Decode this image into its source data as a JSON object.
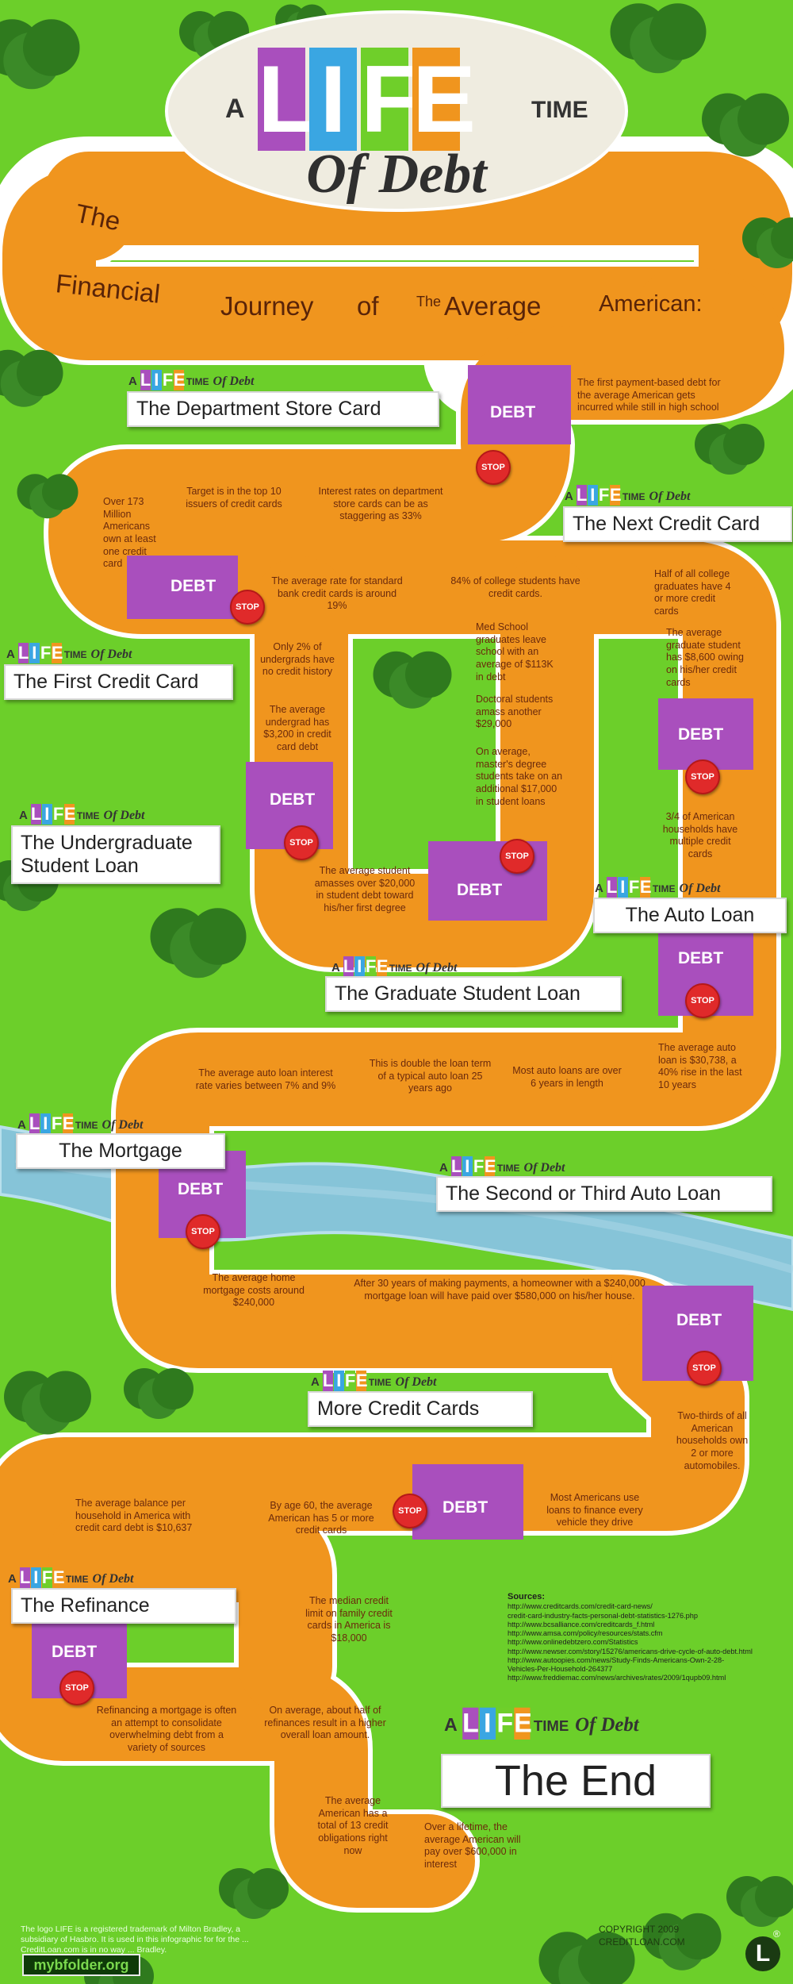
{
  "title": {
    "a": "A",
    "life_letters": [
      "L",
      "I",
      "F",
      "E"
    ],
    "life_colors": [
      "#a94fbd",
      "#3aa6e2",
      "#6fcf2a",
      "#f0951e"
    ],
    "time": "TIME",
    "subtitle": "Of Debt"
  },
  "mini_logo": {
    "a": "A",
    "life_letters": [
      "L",
      "I",
      "F",
      "E"
    ],
    "time": "TIME",
    "of_debt": "Of Debt"
  },
  "banner": {
    "words": [
      "The",
      "Financial",
      "Journey",
      "of",
      "The",
      "Average",
      "American:"
    ]
  },
  "stages": [
    {
      "title": "The Department Store Card",
      "debt": "DEBT",
      "stop": "STOP"
    },
    {
      "title": "The First Credit Card",
      "debt": "DEBT",
      "stop": "STOP"
    },
    {
      "title": "The Next Credit Card",
      "debt": "DEBT",
      "stop": "STOP"
    },
    {
      "title": "The Undergraduate Student Loan",
      "debt": "DEBT",
      "stop": "STOP"
    },
    {
      "title": "The Graduate Student Loan",
      "debt": "DEBT",
      "stop": "STOP"
    },
    {
      "title": "The Auto Loan",
      "debt": "DEBT",
      "stop": "STOP"
    },
    {
      "title": "The Mortgage",
      "debt": "DEBT",
      "stop": "STOP"
    },
    {
      "title": "The Second or Third Auto Loan",
      "debt": "DEBT",
      "stop": "STOP"
    },
    {
      "title": "More Credit Cards",
      "debt": "DEBT",
      "stop": "STOP"
    },
    {
      "title": "The Refinance",
      "debt": "DEBT",
      "stop": "STOP"
    }
  ],
  "facts": [
    "The first payment-based debt for the average American gets incurred while still in high school",
    "Interest rates on department store cards can be as staggering as 33%",
    "Target is in the top 10 issuers of credit cards",
    "Over 173 Million Americans own at least one credit card",
    "The average rate for standard bank credit cards is around 19%",
    "84% of college students have credit cards.",
    "Half of all college graduates have 4 or more credit cards",
    "Only 2% of undergrads have no credit history",
    "The average undergrad has $3,200 in credit card debt",
    "The average student amasses over $20,000 in student debt toward his/her first degree",
    "Med School graduates leave school with an average of $113K in debt",
    "Doctoral students amass another $29,000",
    "On average, master's degree students take on an additional $17,000 in student loans",
    "The average graduate student has $8,600 owing on his/her credit cards",
    "3/4 of American households have multiple credit cards",
    "The average auto loan is $30,738, a 40% rise in the last 10 years",
    "Most auto loans are over 6 years in length",
    "This is double the loan term of a typical auto loan 25 years ago",
    "The average auto loan interest rate varies between 7% and 9%",
    "The average home mortgage costs around $240,000",
    "After 30 years of making payments, a homeowner with a $240,000 mortgage loan will have paid over $580,000 on his/her house.",
    "Two-thirds of all American households own 2 or more automobiles.",
    "Most Americans use loans to finance every vehicle they drive",
    "By age 60, the average American has 5 or more credit cards",
    "The average balance per household in America with credit card debt is $10,637",
    "The median credit limit on family credit cards in America is $18,000",
    "Refinancing a mortgage is often an attempt to consolidate overwhelming debt from a variety of sources",
    "On average, about half of refinances result in a higher overall loan amount.",
    "The average American has a total of 13 credit obligations right now",
    "Over a lifetime, the average American will pay over $600,000 in interest"
  ],
  "end": {
    "title": "The End"
  },
  "sources": {
    "heading": "Sources:",
    "lines": [
      "http://www.creditcards.com/credit-card-news/",
      "credit-card-industry-facts-personal-debt-statistics-1276.php",
      "http://www.bcsalliance.com/creditcards_f.html",
      "http://www.amsa.com/policy/resources/stats.cfm",
      "http://www.onlinedebtzero.com/Statistics",
      "http://www.newser.com/story/15276/americans-drive-cycle-of-auto-debt.html",
      "http://www.autoopies.com/news/Study-Finds-Americans-Own-2-28-",
      "Vehicles-Per-Household-264377",
      "http://www.freddiemac.com/news/archives/rates/2009/1qupb09.html"
    ]
  },
  "footer": {
    "disclaimer": "The logo LIFE is a registered trademark of Milton Bradley, a subsidiary of Hasbro. It is used in this infographic for for the ... CreditLoan.com is in no way ... Bradley.",
    "site_badge": "mybfolder.org",
    "copyright": "COPYRIGHT 2009",
    "brand": "CREDITLOAN.COM",
    "logo_mark": "L",
    "registered": "®"
  },
  "colors": {
    "grass": "#6ccf2a",
    "road": "#f0951e",
    "debt_zone": "#a94fbd",
    "stop": "#e02a2a",
    "river": "#8cc8dc",
    "trees": "#2f7a1e",
    "fact_text": "#6b2a0c"
  }
}
